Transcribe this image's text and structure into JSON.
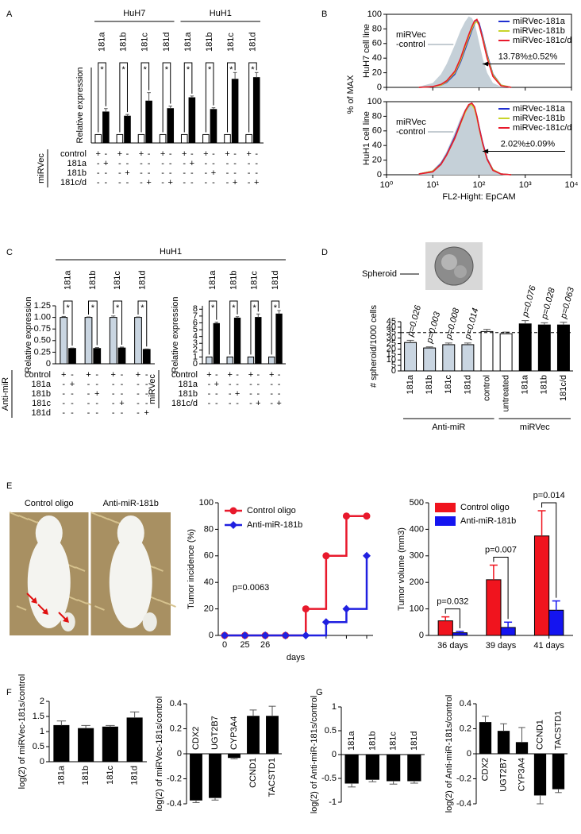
{
  "chart_data": [
    {
      "type": "paired-bar",
      "panel": "A",
      "groups": [
        "HuH7",
        "HuH1"
      ],
      "pair_labels": [
        "181a",
        "181b",
        "181c",
        "181d",
        "181a",
        "181b",
        "181c",
        "181d"
      ],
      "marker": "*",
      "ylabel": "Relative expression",
      "ylim": [
        0,
        9
      ],
      "values": [
        1,
        3.7,
        1,
        3.2,
        1,
        5.0,
        1,
        4.1,
        1,
        5.4,
        1,
        4.0,
        1,
        7.6,
        1,
        7.8
      ],
      "errors": [
        null,
        0.4,
        null,
        0.2,
        null,
        1.0,
        null,
        0.3,
        null,
        0.2,
        null,
        0.2,
        null,
        0.8,
        null,
        0.6
      ],
      "colors": [
        "#ffffff",
        "#000000"
      ],
      "conditions": {
        "label": "miRVec",
        "rows": [
          {
            "label": "control",
            "signs": [
              "+",
              "-",
              "+",
              "-",
              "+",
              "-",
              "+",
              "-",
              "+",
              "-",
              "+",
              "-",
              "+",
              "-",
              "+",
              "-"
            ]
          },
          {
            "label": "181a",
            "signs": [
              "-",
              "+",
              "-",
              "-",
              "-",
              "-",
              "-",
              "-",
              "-",
              "+",
              "-",
              "-",
              "-",
              "-",
              "-",
              "-"
            ]
          },
          {
            "label": "181b",
            "signs": [
              "-",
              "-",
              "-",
              "+",
              "-",
              "-",
              "-",
              "-",
              "-",
              "-",
              "-",
              "+",
              "-",
              "-",
              "-",
              "-"
            ]
          },
          {
            "label": "181c/d",
            "signs": [
              "-",
              "-",
              "-",
              "-",
              "-",
              "+",
              "-",
              "+",
              "-",
              "-",
              "-",
              "-",
              "-",
              "+",
              "-",
              "+"
            ]
          }
        ]
      }
    },
    {
      "type": "flow-histogram",
      "panel": "B",
      "ylabel": "% of MAX",
      "xlabel": "FL2-Hight: EpCAM",
      "xscale": "log",
      "xlim": [
        1,
        10000
      ],
      "xticks": [
        {
          "value": 1,
          "label": "10⁰"
        },
        {
          "value": 10,
          "label": "10¹"
        },
        {
          "value": 100,
          "label": "10²"
        },
        {
          "value": 1000,
          "label": "10³"
        },
        {
          "value": 10000,
          "label": "10⁴"
        }
      ],
      "ylim": [
        0,
        100
      ],
      "yticks": [
        0,
        20,
        40,
        60,
        80,
        100
      ],
      "x": [
        5,
        10,
        15,
        20,
        30,
        40,
        50,
        60,
        70,
        80,
        90,
        100,
        120,
        150,
        200,
        300,
        500
      ],
      "plots": [
        {
          "cell_line": "HuH7 cell line",
          "annotation": "13.78%±0.52%",
          "control": {
            "name": [
              "miRVec",
              "-control"
            ],
            "color": "#c5d0d8",
            "values": [
              1,
              6,
              18,
              32,
              58,
              78,
              90,
              97,
              95,
              88,
              75,
              62,
              40,
              20,
              6,
              1,
              0
            ]
          },
          "series": [
            {
              "name": "miRVec-181a",
              "color": "#1f2fd0",
              "values": [
                0,
                1,
                3,
                7,
                18,
                35,
                52,
                66,
                78,
                87,
                92,
                88,
                70,
                45,
                18,
                3,
                0
              ]
            },
            {
              "name": "miRVec-181b",
              "color": "#c8d42a",
              "values": [
                0,
                1,
                3,
                8,
                20,
                37,
                55,
                69,
                80,
                88,
                90,
                85,
                68,
                43,
                17,
                3,
                0
              ]
            },
            {
              "name": "miRVec-181c/d",
              "color": "#e8192c",
              "values": [
                0,
                1,
                4,
                9,
                22,
                40,
                58,
                72,
                83,
                91,
                93,
                86,
                66,
                40,
                15,
                2,
                0
              ]
            }
          ]
        },
        {
          "cell_line": "HuH1 cell line",
          "annotation": "2.02%±0.09%",
          "control": {
            "name": [
              "miRVec",
              "-control"
            ],
            "color": "#c5d0d8",
            "values": [
              1,
              6,
              18,
              32,
              58,
              78,
              90,
              97,
              95,
              88,
              75,
              62,
              40,
              20,
              6,
              1,
              0
            ]
          },
          "series": [
            {
              "name": "miRVec-181a",
              "color": "#1f2fd0",
              "values": [
                1,
                5,
                15,
                28,
                52,
                72,
                86,
                94,
                97,
                92,
                80,
                66,
                44,
                22,
                7,
                1,
                0
              ]
            },
            {
              "name": "miRVec-181b",
              "color": "#c8d42a",
              "values": [
                1,
                5,
                14,
                27,
                50,
                70,
                85,
                95,
                96,
                90,
                78,
                64,
                42,
                21,
                7,
                1,
                0
              ]
            },
            {
              "name": "miRVec-181c/d",
              "color": "#e8192c",
              "values": [
                1,
                4,
                14,
                27,
                50,
                71,
                87,
                96,
                98,
                93,
                80,
                65,
                43,
                21,
                6,
                1,
                0
              ]
            }
          ]
        }
      ]
    },
    {
      "type": "paired-bar",
      "panel": "C",
      "header": "HuH1",
      "pair_labels": [
        "181a",
        "181b",
        "181c",
        "181d"
      ],
      "marker": "*",
      "ylabel": "Relative expression",
      "ylim": [
        0,
        1.25
      ],
      "yticks": [
        0,
        0.25,
        {
          "value": 0.5,
          "label": "0.50"
        },
        0.75,
        {
          "value": 1,
          "label": "1.00"
        },
        1.25
      ],
      "values": [
        1,
        0.33,
        1,
        0.33,
        1,
        0.34,
        1,
        0.31
      ],
      "errors": [
        0.02,
        0.01,
        0.01,
        0.02,
        0.03,
        0.02,
        0.01,
        0.01
      ],
      "colors": [
        "#c9d5e1",
        "#000000"
      ],
      "conditions": {
        "label": "Anti-miR",
        "rows": [
          {
            "label": "control",
            "signs": [
              "+",
              "-",
              "+",
              "-",
              "+",
              "-",
              "+",
              "-"
            ]
          },
          {
            "label": "181a",
            "signs": [
              "-",
              "+",
              "-",
              "-",
              "-",
              "-",
              "-",
              "-"
            ]
          },
          {
            "label": "181b",
            "signs": [
              "-",
              "-",
              "-",
              "+",
              "-",
              "-",
              "-",
              "-"
            ]
          },
          {
            "label": "181c",
            "signs": [
              "-",
              "-",
              "-",
              "-",
              "-",
              "+",
              "-",
              "-"
            ]
          },
          {
            "label": "181d",
            "signs": [
              "-",
              "-",
              "-",
              "-",
              "-",
              "-",
              "-",
              "+"
            ]
          }
        ]
      }
    },
    {
      "type": "paired-bar",
      "pair_labels": [
        "181a",
        "181b",
        "181c",
        "181d"
      ],
      "marker": "*",
      "ylabel": "Relative expression",
      "ylim": [
        0,
        8.5
      ],
      "yticks": [
        0,
        1,
        2,
        3,
        4,
        5,
        6,
        7,
        8
      ],
      "values": [
        1,
        5.9,
        1,
        6.7,
        1,
        6.8,
        1,
        7.3
      ],
      "errors": [
        null,
        0.2,
        null,
        0.2,
        null,
        0.5,
        null,
        0.5
      ],
      "colors": [
        "#c9d5e1",
        "#000000"
      ],
      "conditions": {
        "label": "miRVec",
        "rows": [
          {
            "label": "control",
            "signs": [
              "+",
              "-",
              "+",
              "-",
              "+",
              "-",
              "+",
              "-"
            ]
          },
          {
            "label": "181a",
            "signs": [
              "-",
              "+",
              "-",
              "-",
              "-",
              "-",
              "-",
              "-"
            ]
          },
          {
            "label": "181b",
            "signs": [
              "-",
              "-",
              "-",
              "+",
              "-",
              "-",
              "-",
              "-"
            ]
          },
          {
            "label": "181c/d",
            "signs": [
              "-",
              "-",
              "-",
              "-",
              "-",
              "+",
              "-",
              "+"
            ]
          }
        ]
      }
    },
    {
      "type": "bar",
      "panel": "D",
      "image_label": "Spheroid",
      "ylabel": "# spheroid/1000 cells",
      "ylim": [
        0,
        45
      ],
      "yticks": [
        0,
        5,
        10,
        15,
        20,
        25,
        30,
        35,
        40,
        45
      ],
      "categories": [
        "181a",
        "181b",
        "181c",
        "181d",
        "control",
        "untreated",
        "181a",
        "181b",
        "181c/d"
      ],
      "values": [
        26,
        21,
        24,
        24,
        36,
        34,
        43,
        42,
        42
      ],
      "errors": [
        2,
        1,
        1.5,
        1.5,
        2,
        1.5,
        3,
        2,
        2.5
      ],
      "colors": [
        "#c9d5e1",
        "#c9d5e1",
        "#c9d5e1",
        "#c9d5e1",
        "#ffffff",
        "#ffffff",
        "#000000",
        "#000000",
        "#000000"
      ],
      "annotations": [
        "p=0.026",
        "p=0.003",
        "p=0.008",
        "p=0.014",
        null,
        null,
        "p=0.076",
        "p=0.028",
        "p=0.063"
      ],
      "reference_line": 35,
      "groups": [
        "Anti-miR",
        "miRVec"
      ]
    },
    {
      "type": "photo",
      "panel": "E",
      "captions": [
        "Control oligo",
        "Anti-miR-181b"
      ]
    },
    {
      "type": "step-line",
      "ylabel": "Tumor incidence (%)",
      "xlabel": "days",
      "categories": [
        "0",
        "25",
        "26",
        null,
        null,
        null,
        null,
        null
      ],
      "ylim": [
        0,
        100
      ],
      "yticks": [
        0,
        20,
        40,
        60,
        80,
        100
      ],
      "series": [
        {
          "name": "Control oligo",
          "color": "#e8192c",
          "marker": "circle",
          "values": [
            0,
            0,
            0,
            0,
            20,
            60,
            90,
            90
          ]
        },
        {
          "name": "Anti-miR-181b",
          "color": "#2020e0",
          "marker": "diamond",
          "values": [
            0,
            0,
            0,
            0,
            0,
            10,
            20,
            60
          ]
        }
      ],
      "annotation": "p=0.0063",
      "legend": "upper left"
    },
    {
      "type": "grouped-bar",
      "categories": [
        "36 days",
        "39 days",
        "41 days"
      ],
      "ylabel": "Tumor volume (mm3)",
      "ylim": [
        0,
        500
      ],
      "yticks": [
        0,
        100,
        200,
        300,
        400,
        500
      ],
      "series": [
        {
          "name": "Control oligo",
          "color": "#f0141e",
          "values": [
            55,
            210,
            375
          ],
          "errors": [
            15,
            55,
            95
          ]
        },
        {
          "name": "Anti-miR-181b",
          "color": "#1414f0",
          "values": [
            10,
            30,
            95
          ],
          "errors": [
            5,
            20,
            35
          ]
        }
      ],
      "annotations": [
        "p=0.032",
        "p=0.007",
        "p=0.014"
      ],
      "legend": "upper left"
    },
    {
      "type": "bar",
      "panel": "F",
      "ylabel": "log(2) of miRVec-181s/control",
      "ylim": [
        0,
        2
      ],
      "yticks": [
        0,
        0.5,
        1,
        1.5,
        2
      ],
      "categories": [
        "181a",
        "181b",
        "181c",
        "181d"
      ],
      "values": [
        1.2,
        1.1,
        1.15,
        1.45
      ],
      "errors": [
        0.15,
        0.1,
        0.05,
        0.2
      ],
      "color": "#000000"
    },
    {
      "type": "bar",
      "ylabel": "log(2) of miRVec-181s/control",
      "ylim": [
        -0.4,
        0.4
      ],
      "yticks": [
        -0.4,
        -0.2,
        0,
        0.2,
        0.4
      ],
      "categories": [
        "CDX2",
        "UGT2B7",
        "CYP3A4",
        "CCND1",
        "TACSTD1"
      ],
      "values": [
        -0.37,
        -0.35,
        -0.03,
        0.3,
        0.3
      ],
      "errors": [
        0.02,
        0.02,
        0.01,
        0.05,
        0.08
      ],
      "color": "#000000"
    },
    {
      "type": "bar",
      "panel": "G",
      "ylabel": "log(2) of Anti-miR-181s/control",
      "ylim": [
        -1,
        1
      ],
      "yticks": [
        -1,
        -0.5,
        0,
        0.5,
        1
      ],
      "categories": [
        "181a",
        "181b",
        "181c",
        "181d"
      ],
      "values": [
        -0.6,
        -0.52,
        -0.55,
        -0.55
      ],
      "errors": [
        0.08,
        0.05,
        0.07,
        0.05
      ],
      "color": "#000000"
    },
    {
      "type": "bar",
      "ylabel": "log(2) of Anti-miR-181s/control",
      "ylim": [
        -0.4,
        0.4
      ],
      "yticks": [
        -0.4,
        -0.2,
        0,
        0.2,
        0.4
      ],
      "categories": [
        "CDX2",
        "UGT2B7",
        "CYP3A4",
        "CCND1",
        "TACSTD1"
      ],
      "values": [
        0.25,
        0.18,
        0.09,
        -0.33,
        -0.28
      ],
      "errors": [
        0.05,
        0.06,
        0.12,
        0.07,
        0.03
      ],
      "color": "#000000"
    }
  ]
}
